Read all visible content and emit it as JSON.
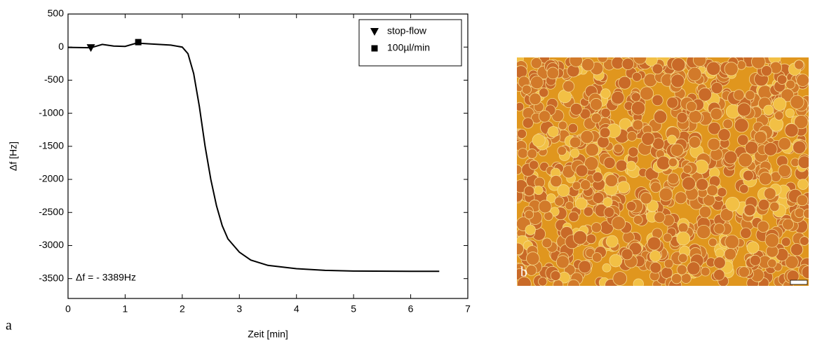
{
  "chart_data": {
    "type": "line",
    "x_label": "Zeit [min]",
    "y_label": "Δf [Hz]",
    "panel_label": "a",
    "annotation": "Δf = - 3389Hz",
    "xlim": [
      0,
      7
    ],
    "xticks": [
      0,
      1,
      2,
      3,
      4,
      5,
      6,
      7
    ],
    "ylim": [
      -3800,
      500
    ],
    "yticks": [
      500,
      0,
      -500,
      -1000,
      -1500,
      -2000,
      -2500,
      -3000,
      -3500
    ],
    "legend": "top-right",
    "series": [
      {
        "color": "#000000",
        "x": [
          0,
          0.4,
          0.6,
          0.8,
          1.0,
          1.2,
          1.4,
          1.8,
          2.0,
          2.1,
          2.2,
          2.3,
          2.4,
          2.5,
          2.6,
          2.7,
          2.8,
          3.0,
          3.2,
          3.5,
          4.0,
          4.5,
          5.0,
          6.0,
          6.5
        ],
        "values": [
          -5,
          -10,
          40,
          15,
          10,
          60,
          50,
          30,
          0,
          -100,
          -400,
          -900,
          -1500,
          -2000,
          -2400,
          -2700,
          -2900,
          -3100,
          -3220,
          -3300,
          -3350,
          -3375,
          -3385,
          -3389,
          -3389
        ]
      }
    ],
    "markers": [
      {
        "name": "stop-flow",
        "shape": "triangle",
        "x": 0.4,
        "y": -10
      },
      {
        "name": "100µl/min",
        "shape": "square",
        "x": 1.23,
        "y": 75
      }
    ]
  },
  "image": {
    "label": "b"
  }
}
